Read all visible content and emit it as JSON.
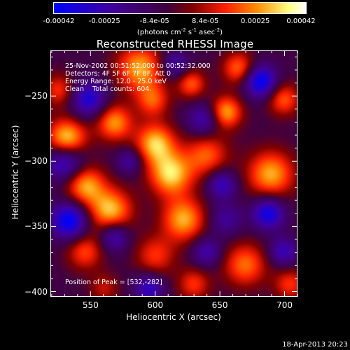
{
  "colorbar": {
    "ticks": [
      "-0.00042",
      "-0.00025",
      "-8.4e-05",
      "8.4e-05",
      "0.00025",
      "0.00042"
    ],
    "tick_values": [
      -0.00042,
      -0.00025,
      -8.4e-05,
      8.4e-05,
      0.00025,
      0.00042
    ],
    "range": [
      -0.00042,
      0.00042
    ],
    "unit_parts": [
      "(photons cm",
      "-2",
      " s",
      "-1",
      " asec",
      "-2",
      ")"
    ],
    "colors": [
      "#0000ff",
      "#4000a0",
      "#400040",
      "#800000",
      "#ff2000",
      "#ff8800",
      "#ffff80",
      "#ffffff"
    ]
  },
  "chart_data": {
    "type": "heatmap",
    "title": "Reconstructed RHESSI Image",
    "xlabel": "Heliocentric X (arcsec)",
    "ylabel": "Heliocentric Y (arcsec)",
    "xlim": [
      519,
      710
    ],
    "ylim": [
      -404,
      -215
    ],
    "xticks": [
      550,
      600,
      650,
      700
    ],
    "yticks": [
      -250,
      -300,
      -350,
      -400
    ],
    "xtick_labels": [
      "550",
      "600",
      "650",
      "700"
    ],
    "ytick_labels": [
      "−250",
      "−300",
      "−350",
      "−400"
    ],
    "peak_position": [
      532,
      -282
    ],
    "blobs": [
      {
        "x": 531,
        "y": -283,
        "v": 1.0,
        "s": 11
      },
      {
        "x": 565,
        "y": -338,
        "v": 0.85,
        "s": 12
      },
      {
        "x": 600,
        "y": -286,
        "v": 0.85,
        "s": 11
      },
      {
        "x": 612,
        "y": -310,
        "v": 0.9,
        "s": 12
      },
      {
        "x": 588,
        "y": -228,
        "v": 0.8,
        "s": 13
      },
      {
        "x": 545,
        "y": -318,
        "v": 0.8,
        "s": 11
      },
      {
        "x": 622,
        "y": -345,
        "v": 0.8,
        "s": 12
      },
      {
        "x": 690,
        "y": -310,
        "v": 0.8,
        "s": 13
      },
      {
        "x": 655,
        "y": -262,
        "v": 0.8,
        "s": 9
      },
      {
        "x": 568,
        "y": -270,
        "v": 0.75,
        "s": 10
      },
      {
        "x": 640,
        "y": -295,
        "v": 0.6,
        "s": 12
      },
      {
        "x": 665,
        "y": -228,
        "v": 0.65,
        "s": 9
      },
      {
        "x": 545,
        "y": -370,
        "v": 0.55,
        "s": 10
      },
      {
        "x": 670,
        "y": -380,
        "v": 0.65,
        "s": 12
      },
      {
        "x": 700,
        "y": -252,
        "v": 0.6,
        "s": 9
      },
      {
        "x": 600,
        "y": -373,
        "v": 0.5,
        "s": 11
      },
      {
        "x": 630,
        "y": -395,
        "v": 0.5,
        "s": 9
      },
      {
        "x": 705,
        "y": -395,
        "v": 0.5,
        "s": 9
      },
      {
        "x": 525,
        "y": -245,
        "v": 0.5,
        "s": 9
      },
      {
        "x": 560,
        "y": -398,
        "v": 0.35,
        "s": 8
      },
      {
        "x": 598,
        "y": -253,
        "v": 0.55,
        "s": 9
      },
      {
        "x": 628,
        "y": -240,
        "v": 0.6,
        "s": 8
      },
      {
        "x": 548,
        "y": -252,
        "v": -0.7,
        "s": 10
      },
      {
        "x": 530,
        "y": -300,
        "v": -0.8,
        "s": 11
      },
      {
        "x": 533,
        "y": -346,
        "v": -0.9,
        "s": 10
      },
      {
        "x": 682,
        "y": -238,
        "v": -0.9,
        "s": 9
      },
      {
        "x": 688,
        "y": -340,
        "v": -0.8,
        "s": 9
      },
      {
        "x": 652,
        "y": -318,
        "v": -0.6,
        "s": 8
      },
      {
        "x": 595,
        "y": -398,
        "v": -0.6,
        "s": 8
      },
      {
        "x": 638,
        "y": -268,
        "v": -0.55,
        "s": 9
      },
      {
        "x": 568,
        "y": -358,
        "v": -0.6,
        "s": 8
      },
      {
        "x": 640,
        "y": -370,
        "v": -0.5,
        "s": 8
      },
      {
        "x": 580,
        "y": -300,
        "v": -0.45,
        "s": 7
      },
      {
        "x": 615,
        "y": -225,
        "v": -0.5,
        "s": 8
      },
      {
        "x": 700,
        "y": -370,
        "v": -0.55,
        "s": 8
      },
      {
        "x": 655,
        "y": -345,
        "v": -0.4,
        "s": 9
      }
    ]
  },
  "annotations": {
    "time_range": "25-Nov-2002 00:51:52.000 to 00:52:32.000",
    "detectors": "Detectors: 4F 5F 6F 7F 8F, Att 0",
    "energy": "Energy Range: 12.0 - 25.0 keV",
    "clean": "Clean    Total counts: 604.",
    "peak": "Position of Peak = [532,-282]"
  },
  "footer": {
    "timestamp": "18-Apr-2013 20:23"
  }
}
